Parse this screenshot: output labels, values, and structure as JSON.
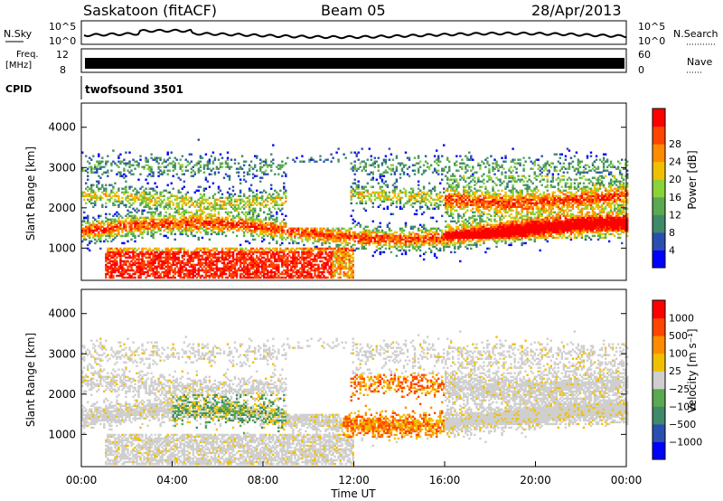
{
  "header": {
    "title": "Saskatoon (fitACF)",
    "beam": "Beam 05",
    "date": "28/Apr/2013"
  },
  "noise_panel": {
    "left_label": "N.Sky",
    "right_label": "N.Search",
    "right_top": "10^5",
    "right_bottom": "10^0",
    "left_top": "10^5",
    "left_bottom": "10^0"
  },
  "freq_panel": {
    "left_label_1": "Freq.",
    "left_label_2": "[MHz]",
    "left_top": "12",
    "left_bottom": "8",
    "right_label": "Nave",
    "right_top": "60",
    "right_bottom": "0"
  },
  "cpid": {
    "label": "CPID",
    "value": "twofsound 3501"
  },
  "colors": {
    "power_scale": [
      "#0000ff",
      "#2b4fb0",
      "#3f8a6a",
      "#5aa84f",
      "#8ad23a",
      "#f0c000",
      "#ff8c00",
      "#ff4500",
      "#ff0000"
    ],
    "velocity_scale": [
      "#0000ff",
      "#2b4fb0",
      "#3f8a6a",
      "#5aa84f",
      "#cfcfcf",
      "#f0c000",
      "#ff8c00",
      "#ff4500",
      "#ff0000"
    ]
  },
  "chart_data": [
    {
      "type": "heatmap",
      "name": "power",
      "ylabel": "Slant Range [km]",
      "yticks": [
        "1000",
        "2000",
        "3000",
        "4000"
      ],
      "colorbar_label": "Power [dB]",
      "colorbar_ticks": [
        "4",
        "8",
        "12",
        "16",
        "20",
        "24",
        "28"
      ],
      "ylim": [
        200,
        4600
      ],
      "xlim_hours": [
        0,
        24
      ]
    },
    {
      "type": "heatmap",
      "name": "velocity",
      "ylabel": "Slant Range [km]",
      "yticks": [
        "1000",
        "2000",
        "3000",
        "4000"
      ],
      "colorbar_label": "Velocity [m s⁻¹]",
      "colorbar_ticks": [
        "1000",
        "500",
        "100",
        "25",
        "−25",
        "−100",
        "−500",
        "−1000"
      ],
      "ylim": [
        200,
        4600
      ],
      "xlim_hours": [
        0,
        24
      ]
    }
  ],
  "xaxis": {
    "ticks": [
      "00:00",
      "04:00",
      "08:00",
      "12:00",
      "16:00",
      "20:00",
      "00:00"
    ],
    "label": "Time UT"
  }
}
